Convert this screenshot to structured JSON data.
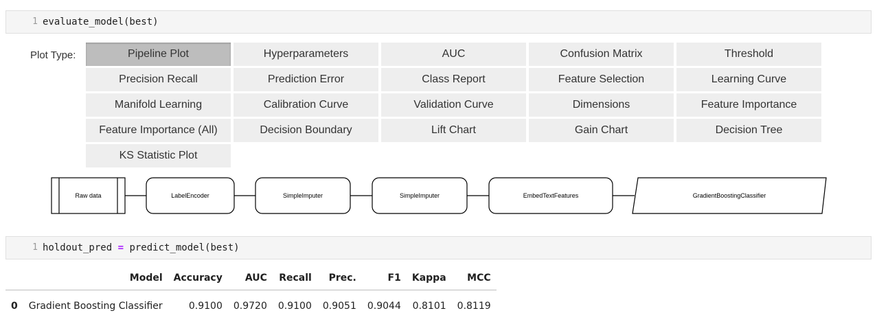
{
  "cell1": {
    "line_no": "1",
    "code": "evaluate_model(best)"
  },
  "widget": {
    "label": "Plot Type:",
    "active": "Pipeline Plot",
    "buttons": [
      "Pipeline Plot",
      "Hyperparameters",
      "AUC",
      "Confusion Matrix",
      "Threshold",
      "Precision Recall",
      "Prediction Error",
      "Class Report",
      "Feature Selection",
      "Learning Curve",
      "Manifold Learning",
      "Calibration Curve",
      "Validation Curve",
      "Dimensions",
      "Feature Importance",
      "Feature Importance (All)",
      "Decision Boundary",
      "Lift Chart",
      "Gain Chart",
      "Decision Tree",
      "KS Statistic Plot"
    ]
  },
  "pipeline": {
    "steps": [
      "Raw data",
      "LabelEncoder",
      "SimpleImputer",
      "SimpleImputer",
      "EmbedTextFeatures",
      "GradientBoostingClassifier"
    ]
  },
  "cell2": {
    "line_no": "1",
    "code_left": "holdout_pred ",
    "operator": "=",
    "code_right": " predict_model(best)"
  },
  "results": {
    "headers": [
      "",
      "Model",
      "Accuracy",
      "AUC",
      "Recall",
      "Prec.",
      "F1",
      "Kappa",
      "MCC"
    ],
    "rows": [
      [
        "0",
        "Gradient Boosting Classifier",
        "0.9100",
        "0.9720",
        "0.9100",
        "0.9051",
        "0.9044",
        "0.8101",
        "0.8119"
      ]
    ]
  }
}
